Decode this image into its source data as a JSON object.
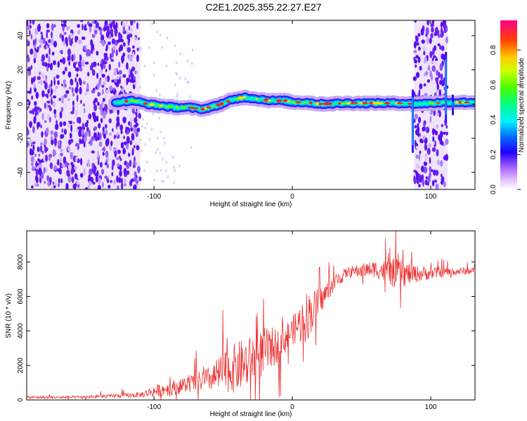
{
  "title": "C2E1.2025.355.22.27.E27",
  "chart_data": [
    {
      "type": "heatmap",
      "title": "C2E1.2025.355.22.27.E27",
      "xlabel": "Height of straight line (km)",
      "ylabel": "Frequency (Hz)",
      "xlim": [
        -192,
        132
      ],
      "ylim": [
        -50,
        49
      ],
      "xticks": [
        -100,
        0,
        100
      ],
      "xtick_labels": [
        "-100",
        "0",
        "100"
      ],
      "yticks": [
        -40,
        -20,
        0,
        20,
        40
      ],
      "ytick_labels": [
        "-40",
        "-20",
        "0",
        "20",
        "40"
      ],
      "colorbar": {
        "label": "Normalized spectral amplitude",
        "range": [
          0,
          0.97
        ],
        "ticks": [
          0.0,
          0.2,
          0.4,
          0.6,
          0.8
        ],
        "tick_labels": [
          "0.0",
          "0.2",
          "0.4",
          "0.6",
          "0.8"
        ]
      },
      "noise_regions_km": [
        [
          -192,
          -110
        ],
        [
          88,
          112
        ]
      ],
      "band_centerline": {
        "x": [
          -128,
          -115,
          -105,
          -95,
          -85,
          -75,
          -65,
          -55,
          -45,
          -35,
          -25,
          -15,
          -5,
          0,
          10,
          20,
          40,
          60,
          80,
          88,
          112,
          132
        ],
        "y": [
          1,
          2,
          0,
          -1,
          -2,
          -2,
          -3,
          -1,
          2,
          4,
          3,
          2,
          2,
          1,
          1,
          0,
          0.5,
          0.5,
          0.5,
          0,
          1,
          1
        ]
      }
    },
    {
      "type": "line",
      "xlabel": "Height of straight line (km)",
      "ylabel": "SNR (10 * v/v)",
      "xlim": [
        -192,
        132
      ],
      "ylim": [
        0,
        9800
      ],
      "xticks": [
        -100,
        0,
        100
      ],
      "xtick_labels": [
        "-100",
        "0",
        "100"
      ],
      "yticks": [
        0,
        2000,
        4000,
        6000,
        8000
      ],
      "ytick_labels": [
        "0",
        "2000",
        "4000",
        "6000",
        "8000"
      ],
      "series": [
        {
          "name": "SNR",
          "color": "#ee3333",
          "trend_x": [
            -192,
            -150,
            -110,
            -100,
            -80,
            -60,
            -50,
            -40,
            -30,
            -20,
            -10,
            0,
            10,
            20,
            30,
            40,
            60,
            75,
            90,
            110,
            132
          ],
          "trend_y": [
            150,
            160,
            300,
            500,
            800,
            1200,
            1600,
            1900,
            2300,
            2800,
            3200,
            4000,
            4800,
            5700,
            6800,
            7400,
            7600,
            7300,
            7300,
            7400,
            7500
          ],
          "noise_amplitude": [
            80,
            80,
            150,
            350,
            450,
            700,
            1200,
            1500,
            1400,
            1400,
            1000,
            800,
            1500,
            800,
            500,
            300,
            500,
            900,
            500,
            250,
            200
          ]
        }
      ]
    }
  ]
}
